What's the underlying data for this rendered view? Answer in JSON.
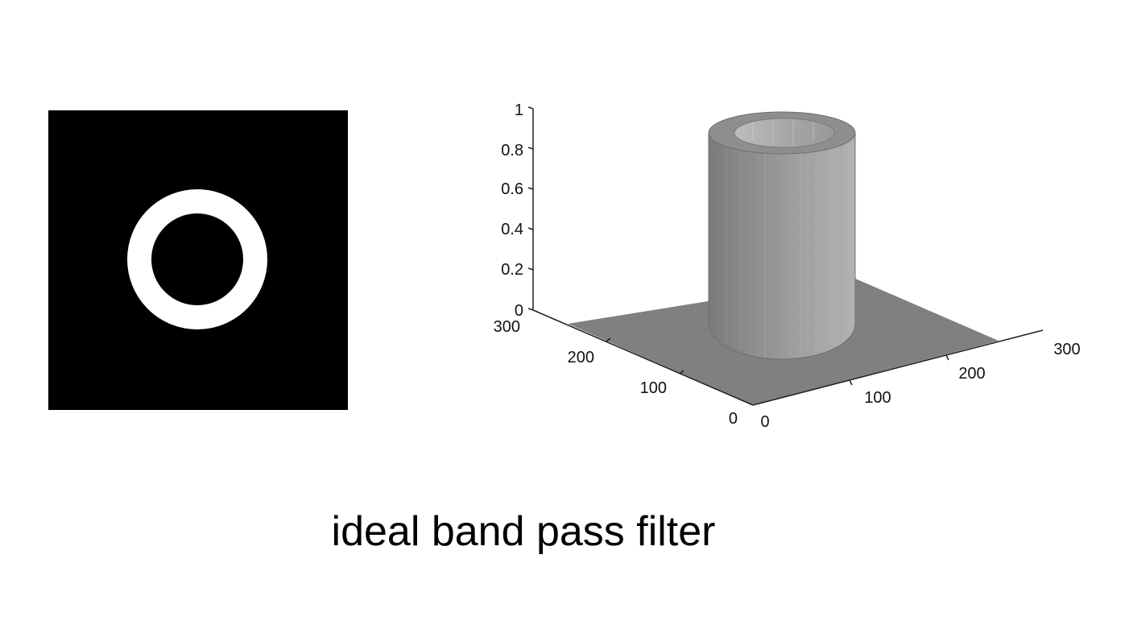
{
  "caption": "ideal band pass filter",
  "filter_image": {
    "background_color": "#000000",
    "ring_color": "#ffffff"
  },
  "surface_plot": {
    "z_ticks": [
      "0",
      "0.2",
      "0.4",
      "0.6",
      "0.8",
      "1"
    ],
    "y_ticks": [
      "0",
      "100",
      "200",
      "300"
    ],
    "x_ticks": [
      "0",
      "100",
      "200",
      "300"
    ],
    "surface_color": "#808080"
  }
}
